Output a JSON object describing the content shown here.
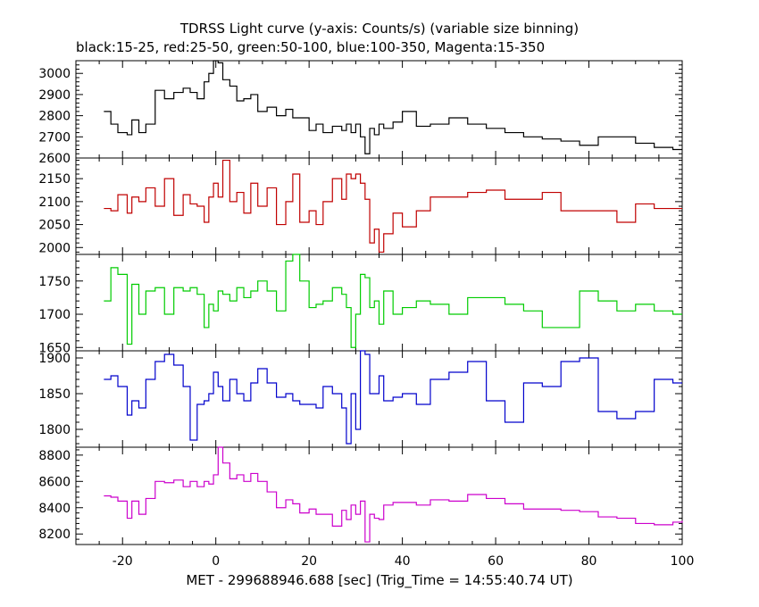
{
  "header": {
    "title": "TDRSS Light curve (y-axis: Counts/s) (variable size binning)",
    "subtitle": "black:15-25, red:25-50, green:50-100, blue:100-350, Magenta:15-350"
  },
  "chart_data": {
    "type": "line",
    "step": true,
    "xlabel": "MET - 299688946.688 [sec] (Trig_Time = 14:55:40.74 UT)",
    "xlim": [
      -30,
      100
    ],
    "xticks": [
      -20,
      0,
      20,
      40,
      60,
      80,
      100
    ],
    "panels": [
      {
        "name": "black:15-25",
        "color": "#000000",
        "ylim": [
          2600,
          3060
        ],
        "yticks": [
          2600,
          2700,
          2800,
          2900,
          3000
        ],
        "x": [
          -24,
          -22.5,
          -21,
          -19,
          -18,
          -16.5,
          -15,
          -13,
          -11,
          -9,
          -7,
          -5.5,
          -4,
          -2.5,
          -1.5,
          -0.5,
          0.5,
          1.5,
          3,
          4.5,
          6,
          7.5,
          9,
          11,
          13,
          15,
          16.5,
          18,
          20,
          21.5,
          23,
          25,
          27,
          28,
          29,
          30,
          31,
          32,
          33,
          34,
          35,
          36,
          38,
          40,
          43,
          46,
          50,
          54,
          58,
          62,
          66,
          70,
          74,
          78,
          82,
          86,
          90,
          94,
          98,
          100
        ],
        "y": [
          2820,
          2760,
          2720,
          2710,
          2780,
          2720,
          2760,
          2920,
          2880,
          2910,
          2930,
          2910,
          2880,
          2960,
          3000,
          3060,
          3050,
          2970,
          2940,
          2870,
          2880,
          2900,
          2820,
          2840,
          2800,
          2830,
          2790,
          2790,
          2730,
          2760,
          2720,
          2750,
          2730,
          2760,
          2720,
          2760,
          2700,
          2620,
          2740,
          2710,
          2760,
          2740,
          2770,
          2820,
          2750,
          2760,
          2790,
          2760,
          2740,
          2720,
          2700,
          2690,
          2680,
          2660,
          2700,
          2700,
          2670,
          2650,
          2640,
          2640
        ]
      },
      {
        "name": "red:25-50",
        "color": "#c00000",
        "ylim": [
          1985,
          2195
        ],
        "yticks": [
          2000,
          2050,
          2100,
          2150
        ],
        "x": [
          -24,
          -22.5,
          -21,
          -19,
          -18,
          -16.5,
          -15,
          -13,
          -11,
          -9,
          -7,
          -5.5,
          -4,
          -2.5,
          -1.5,
          -0.5,
          0.5,
          1.5,
          3,
          4.5,
          6,
          7.5,
          9,
          11,
          13,
          15,
          16.5,
          18,
          20,
          21.5,
          23,
          25,
          27,
          28,
          29,
          30,
          31,
          32,
          33,
          34,
          35,
          36,
          38,
          40,
          43,
          46,
          50,
          54,
          58,
          62,
          66,
          70,
          74,
          78,
          82,
          86,
          90,
          94,
          98,
          100
        ],
        "y": [
          2085,
          2080,
          2115,
          2075,
          2110,
          2100,
          2130,
          2090,
          2150,
          2070,
          2115,
          2095,
          2090,
          2055,
          2110,
          2140,
          2110,
          2190,
          2100,
          2120,
          2075,
          2140,
          2090,
          2130,
          2050,
          2100,
          2160,
          2055,
          2080,
          2050,
          2100,
          2150,
          2105,
          2160,
          2150,
          2160,
          2140,
          2105,
          2010,
          2040,
          1990,
          2030,
          2075,
          2045,
          2080,
          2110,
          2110,
          2120,
          2125,
          2105,
          2105,
          2120,
          2080,
          2080,
          2080,
          2055,
          2095,
          2085,
          2085,
          2085
        ]
      },
      {
        "name": "green:50-100",
        "color": "#00cc00",
        "ylim": [
          1645,
          1790
        ],
        "yticks": [
          1650,
          1700,
          1750
        ],
        "x": [
          -24,
          -22.5,
          -21,
          -19,
          -18,
          -16.5,
          -15,
          -13,
          -11,
          -9,
          -7,
          -5.5,
          -4,
          -2.5,
          -1.5,
          -0.5,
          0.5,
          1.5,
          3,
          4.5,
          6,
          7.5,
          9,
          11,
          13,
          15,
          16.5,
          18,
          20,
          21.5,
          23,
          25,
          27,
          28,
          29,
          30,
          31,
          32,
          33,
          34,
          35,
          36,
          38,
          40,
          43,
          46,
          50,
          54,
          58,
          62,
          66,
          70,
          74,
          78,
          82,
          86,
          90,
          94,
          98,
          100
        ],
        "y": [
          1720,
          1770,
          1760,
          1655,
          1745,
          1700,
          1735,
          1740,
          1700,
          1740,
          1735,
          1740,
          1730,
          1680,
          1715,
          1705,
          1735,
          1730,
          1720,
          1740,
          1725,
          1735,
          1750,
          1735,
          1705,
          1780,
          1790,
          1750,
          1710,
          1715,
          1720,
          1740,
          1730,
          1710,
          1650,
          1700,
          1760,
          1755,
          1710,
          1720,
          1685,
          1735,
          1700,
          1710,
          1720,
          1715,
          1700,
          1725,
          1725,
          1715,
          1705,
          1680,
          1680,
          1735,
          1720,
          1705,
          1715,
          1705,
          1700,
          1700
        ]
      },
      {
        "name": "blue:100-350",
        "color": "#0000cc",
        "ylim": [
          1775,
          1910
        ],
        "yticks": [
          1800,
          1850,
          1900
        ],
        "x": [
          -24,
          -22.5,
          -21,
          -19,
          -18,
          -16.5,
          -15,
          -13,
          -11,
          -9,
          -7,
          -5.5,
          -4,
          -2.5,
          -1.5,
          -0.5,
          0.5,
          1.5,
          3,
          4.5,
          6,
          7.5,
          9,
          11,
          13,
          15,
          16.5,
          18,
          20,
          21.5,
          23,
          25,
          27,
          28,
          29,
          30,
          31,
          32,
          33,
          34,
          35,
          36,
          38,
          40,
          43,
          46,
          50,
          54,
          58,
          62,
          66,
          70,
          74,
          78,
          82,
          86,
          90,
          94,
          98,
          100
        ],
        "y": [
          1870,
          1875,
          1860,
          1820,
          1840,
          1830,
          1870,
          1895,
          1905,
          1890,
          1860,
          1785,
          1835,
          1840,
          1850,
          1880,
          1860,
          1840,
          1870,
          1850,
          1840,
          1865,
          1885,
          1865,
          1845,
          1850,
          1840,
          1835,
          1835,
          1830,
          1860,
          1850,
          1830,
          1780,
          1850,
          1800,
          1915,
          1905,
          1850,
          1850,
          1875,
          1840,
          1845,
          1850,
          1835,
          1870,
          1880,
          1895,
          1840,
          1810,
          1865,
          1860,
          1895,
          1900,
          1825,
          1815,
          1825,
          1870,
          1865,
          1865
        ]
      },
      {
        "name": "Magenta:15-350",
        "color": "#cc00cc",
        "ylim": [
          8120,
          8860
        ],
        "yticks": [
          8200,
          8400,
          8600,
          8800
        ],
        "x": [
          -24,
          -22.5,
          -21,
          -19,
          -18,
          -16.5,
          -15,
          -13,
          -11,
          -9,
          -7,
          -5.5,
          -4,
          -2.5,
          -1.5,
          -0.5,
          0.5,
          1.5,
          3,
          4.5,
          6,
          7.5,
          9,
          11,
          13,
          15,
          16.5,
          18,
          20,
          21.5,
          23,
          25,
          27,
          28,
          29,
          30,
          31,
          32,
          33,
          34,
          35,
          36,
          38,
          40,
          43,
          46,
          50,
          54,
          58,
          62,
          66,
          70,
          74,
          78,
          82,
          86,
          90,
          94,
          98,
          100
        ],
        "y": [
          8490,
          8480,
          8450,
          8320,
          8450,
          8350,
          8470,
          8600,
          8590,
          8610,
          8560,
          8600,
          8560,
          8600,
          8580,
          8650,
          8860,
          8740,
          8620,
          8650,
          8600,
          8660,
          8600,
          8520,
          8400,
          8460,
          8430,
          8360,
          8390,
          8350,
          8350,
          8260,
          8380,
          8310,
          8420,
          8350,
          8450,
          8140,
          8350,
          8320,
          8310,
          8420,
          8440,
          8440,
          8420,
          8460,
          8450,
          8500,
          8470,
          8430,
          8390,
          8390,
          8380,
          8370,
          8330,
          8320,
          8280,
          8270,
          8290,
          8300
        ]
      }
    ]
  }
}
